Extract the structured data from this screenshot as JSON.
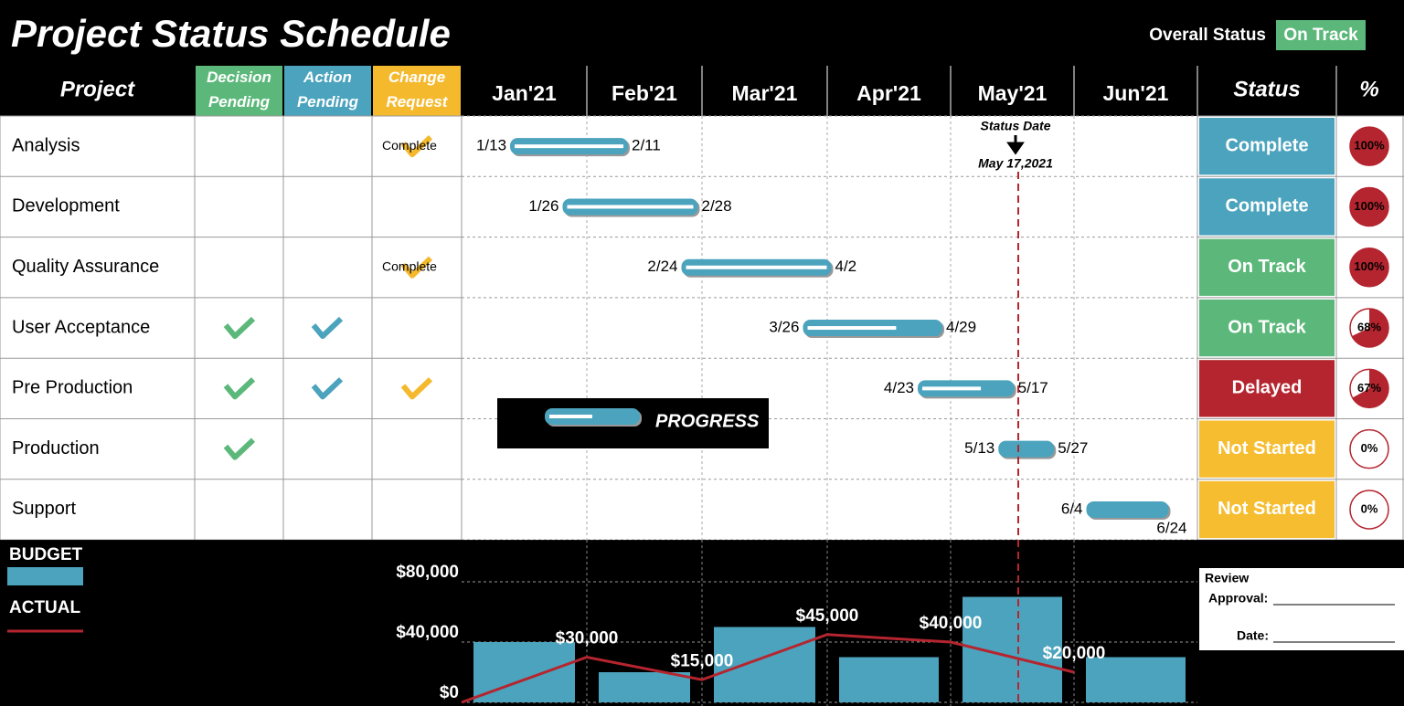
{
  "header": {
    "title": "Project Status Schedule",
    "overall_label": "Overall Status",
    "overall_status": "On Track"
  },
  "table": {
    "columns": [
      "Project",
      "Decision Pending",
      "Action Pending",
      "Change Request"
    ],
    "months": [
      "Jan'21",
      "Feb'21",
      "Mar'21",
      "Apr'21",
      "May'21",
      "Jun'21"
    ],
    "status_column": "Status",
    "percent_column": "%",
    "rows": [
      {
        "project": "Analysis",
        "decision": false,
        "action": false,
        "change": true,
        "change_label": "Complete",
        "start": "1/13",
        "end": "2/11",
        "status": "Complete",
        "status_color": "#4ba3bd",
        "percent": 100,
        "percent_label": "100%"
      },
      {
        "project": "Development",
        "decision": false,
        "action": false,
        "change": false,
        "start": "1/26",
        "end": "2/28",
        "status": "Complete",
        "status_color": "#4ba3bd",
        "percent": 100,
        "percent_label": "100%"
      },
      {
        "project": "Quality Assurance",
        "decision": false,
        "action": false,
        "change": true,
        "change_label": "Complete",
        "start": "2/24",
        "end": "4/2",
        "status": "On Track",
        "status_color": "#5cb87a",
        "percent": 100,
        "percent_label": "100%"
      },
      {
        "project": "User Acceptance",
        "decision": true,
        "action": true,
        "change": false,
        "start": "3/26",
        "end": "4/29",
        "status": "On Track",
        "status_color": "#5cb87a",
        "percent": 68,
        "percent_label": "68%"
      },
      {
        "project": "Pre Production",
        "decision": true,
        "action": true,
        "change": true,
        "start": "4/23",
        "end": "5/17",
        "status": "Delayed",
        "status_color": "#b5252f",
        "percent": 67,
        "percent_label": "67%"
      },
      {
        "project": "Production",
        "decision": true,
        "action": false,
        "change": false,
        "start": "5/13",
        "end": "5/27",
        "status": "Not Started",
        "status_color": "#f5bd2f",
        "percent": 0,
        "percent_label": "0%"
      },
      {
        "project": "Support",
        "decision": false,
        "action": false,
        "change": false,
        "start": "6/4",
        "end": "6/24",
        "status": "Not Started",
        "status_color": "#f5bd2f",
        "percent": 0,
        "percent_label": "0%"
      }
    ]
  },
  "status_marker": {
    "label": "Status Date",
    "date": "May 17,2021"
  },
  "legend": {
    "progress": "PROGRESS"
  },
  "chart_data": {
    "type": "bar",
    "series": [
      {
        "name": "BUDGET",
        "type": "bar",
        "color": "#4ba3bd",
        "values": [
          40000,
          20000,
          50000,
          30000,
          70000,
          30000
        ]
      },
      {
        "name": "ACTUAL",
        "type": "line",
        "color": "#b5252f",
        "values": [
          0,
          30000,
          15000,
          45000,
          40000,
          20000
        ],
        "value_labels": [
          null,
          "$30,000",
          "$15,000",
          "$45,000",
          "$40,000",
          "$20,000"
        ]
      }
    ],
    "ylim": [
      0,
      100000
    ],
    "yticks": [
      {
        "value": 0,
        "label": "$0"
      },
      {
        "value": 40000,
        "label": "$40,000"
      },
      {
        "value": 80000,
        "label": "$80,000"
      }
    ],
    "grid": true
  },
  "review": {
    "title": "Review",
    "approval": "Approval:",
    "date": "Date:"
  }
}
